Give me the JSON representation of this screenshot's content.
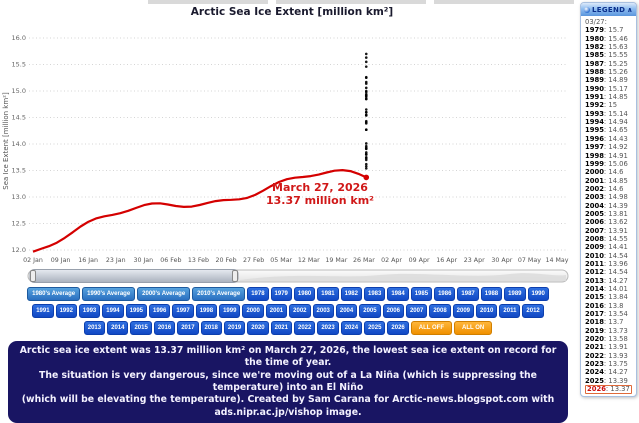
{
  "chart": {
    "title": "Arctic Sea Ice Extent [million km²]",
    "y_axis_label": "Sea Ice Extent [million km²]",
    "y_ticks": [
      "16.0",
      "15.5",
      "15.0",
      "14.5",
      "14.0",
      "13.5",
      "13.0",
      "12.5",
      "12.0"
    ],
    "x_ticks": [
      "02 Jan",
      "09 Jan",
      "16 Jan",
      "23 Jan",
      "30 Jan",
      "06 Feb",
      "13 Feb",
      "20 Feb",
      "27 Feb",
      "05 Mar",
      "12 Mar",
      "19 Mar",
      "26 Mar",
      "02 Apr",
      "09 Apr",
      "16 Apr",
      "23 Apr",
      "30 Apr",
      "07 May",
      "14 May"
    ],
    "annotation": {
      "line1": "March 27, 2026",
      "line2": "13.37 million km²",
      "color": "#d01818"
    }
  },
  "chart_data": {
    "type": "line",
    "title": "Arctic Sea Ice Extent [million km²]",
    "ylabel": "Sea Ice Extent [million km²]",
    "ylim": [
      11.8,
      16.4
    ],
    "x_range": [
      "02 Jan",
      "14 May"
    ],
    "anchor_date": "03/27",
    "note": "each series is one year's daily sea-ice extent; values below are the extent in million km² on 03/27",
    "years": [
      {
        "year": "1979",
        "value": "15.7"
      },
      {
        "year": "1980",
        "value": "15.46"
      },
      {
        "year": "1982",
        "value": "15.63"
      },
      {
        "year": "1985",
        "value": "15.55"
      },
      {
        "year": "1987",
        "value": "15.25"
      },
      {
        "year": "1988",
        "value": "15.26"
      },
      {
        "year": "1989",
        "value": "14.89"
      },
      {
        "year": "1990",
        "value": "15.17"
      },
      {
        "year": "1991",
        "value": "14.85"
      },
      {
        "year": "1992",
        "value": "15"
      },
      {
        "year": "1993",
        "value": "15.14"
      },
      {
        "year": "1994",
        "value": "14.94"
      },
      {
        "year": "1995",
        "value": "14.65"
      },
      {
        "year": "1996",
        "value": "14.43"
      },
      {
        "year": "1997",
        "value": "14.92"
      },
      {
        "year": "1998",
        "value": "14.91"
      },
      {
        "year": "1999",
        "value": "15.06"
      },
      {
        "year": "2000",
        "value": "14.6"
      },
      {
        "year": "2001",
        "value": "14.85"
      },
      {
        "year": "2002",
        "value": "14.6"
      },
      {
        "year": "2003",
        "value": "14.98"
      },
      {
        "year": "2004",
        "value": "14.39"
      },
      {
        "year": "2005",
        "value": "13.81"
      },
      {
        "year": "2006",
        "value": "13.62"
      },
      {
        "year": "2007",
        "value": "13.91"
      },
      {
        "year": "2008",
        "value": "14.55"
      },
      {
        "year": "2009",
        "value": "14.41"
      },
      {
        "year": "2010",
        "value": "14.54"
      },
      {
        "year": "2011",
        "value": "13.96"
      },
      {
        "year": "2012",
        "value": "14.54"
      },
      {
        "year": "2013",
        "value": "14.27"
      },
      {
        "year": "2014",
        "value": "14.01"
      },
      {
        "year": "2015",
        "value": "13.84"
      },
      {
        "year": "2016",
        "value": "13.8"
      },
      {
        "year": "2017",
        "value": "13.54"
      },
      {
        "year": "2018",
        "value": "13.7"
      },
      {
        "year": "2019",
        "value": "13.73"
      },
      {
        "year": "2020",
        "value": "13.58"
      },
      {
        "year": "2021",
        "value": "13.91"
      },
      {
        "year": "2022",
        "value": "13.93"
      },
      {
        "year": "2023",
        "value": "13.75"
      },
      {
        "year": "2024",
        "value": "14.27"
      },
      {
        "year": "2025",
        "value": "13.39"
      },
      {
        "year": "2026",
        "value": "13.37"
      }
    ],
    "highlight_series": {
      "year": "2026",
      "value": "13.37",
      "ends_at": "March 27, 2026",
      "color": "#d40000"
    }
  },
  "legend": {
    "header": "LEGEND",
    "collapse_icon": "∧",
    "date_label": "03/27:"
  },
  "buttons": {
    "rows": [
      [
        "1980's Average",
        "1990's Average",
        "2000's Average",
        "2010's Average",
        "1978",
        "1979",
        "1980",
        "1981",
        "1982",
        "1983",
        "1984",
        "1985",
        "1986",
        "1987",
        "1988",
        "1989",
        "1990"
      ],
      [
        "1991",
        "1992",
        "1993",
        "1994",
        "1995",
        "1996",
        "1997",
        "1998",
        "1999",
        "2000",
        "2001",
        "2002",
        "2003",
        "2004",
        "2005",
        "2006",
        "2007",
        "2008",
        "2009",
        "2010",
        "2011",
        "2012"
      ],
      [
        "2013",
        "2014",
        "2015",
        "2016",
        "2017",
        "2018",
        "2019",
        "2020",
        "2021",
        "2022",
        "2023",
        "2024",
        "2025",
        "2026",
        "ALL OFF",
        "ALL ON"
      ]
    ]
  },
  "footer": {
    "lines": [
      "Arctic sea ice extent was 13.37 million km² on March 27, 2026, the lowest sea ice extent on record for the time of year.",
      "The situation is very dangerous, since we're moving out of a La Niña (which is suppressing the temperature) into an El Niño",
      "(which will be elevating the temperature). Created by Sam Carana for Arctic-news.blogspot.com with ads.nipr.ac.jp/vishop image."
    ]
  },
  "colors": {
    "year_button": "#1a56d6",
    "avg_button": "#2f7ccc",
    "action_button": "#f7a01d",
    "footer_bg": "#191563",
    "red_series": "#d40000",
    "grid": "#c8c8c8"
  }
}
